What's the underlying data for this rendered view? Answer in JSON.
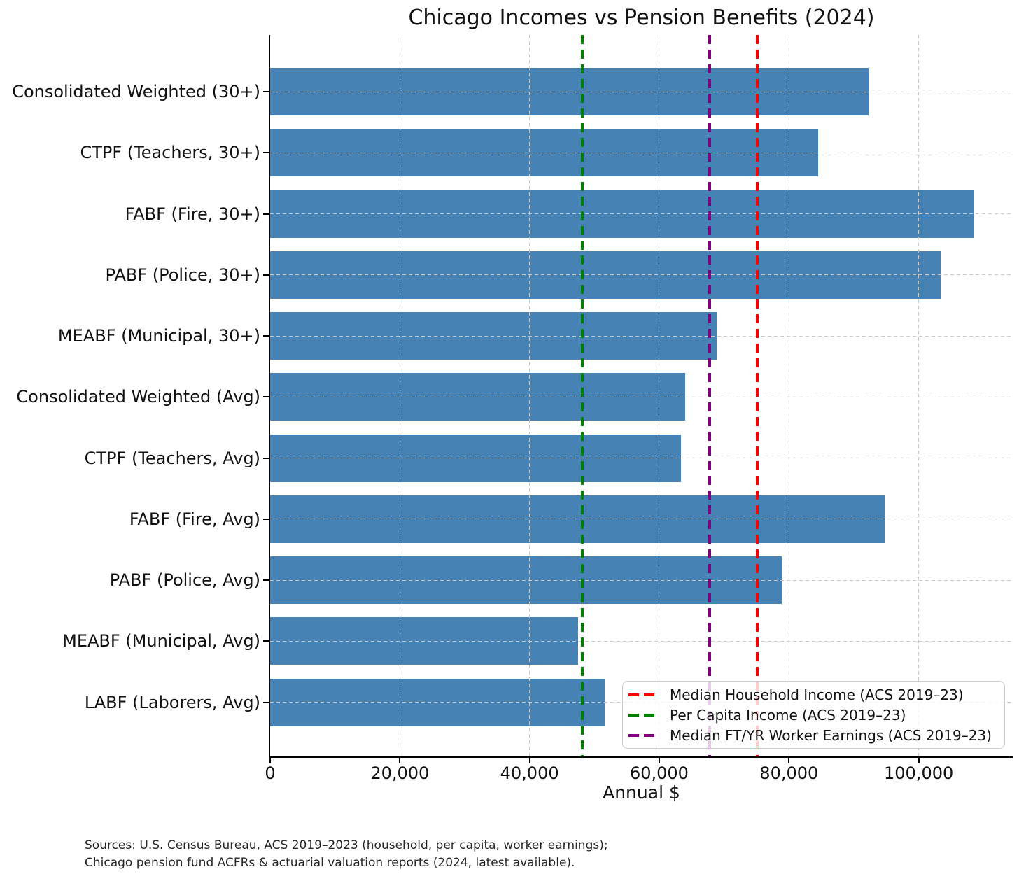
{
  "chart_data": {
    "type": "bar",
    "orientation": "horizontal",
    "title": "Chicago Incomes vs Pension Benefits (2024)",
    "xlabel": "Annual $",
    "categories": [
      "Consolidated Weighted (30+)",
      "CTPF (Teachers, 30+)",
      "FABF (Fire, 30+)",
      "PABF (Police, 30+)",
      "MEABF (Municipal, 30+)",
      "Consolidated Weighted (Avg)",
      "CTPF (Teachers, Avg)",
      "FABF (Fire, Avg)",
      "PABF (Police, Avg)",
      "MEABF (Municipal, Avg)",
      "LABF (Laborers, Avg)"
    ],
    "values": [
      92300,
      84500,
      108600,
      103400,
      68800,
      64000,
      63300,
      94700,
      78900,
      47500,
      51600
    ],
    "bar_color": "#4682b4",
    "xlim": [
      0,
      114500
    ],
    "xticks": {
      "values": [
        0,
        20000,
        40000,
        60000,
        80000,
        100000
      ],
      "labels": [
        "0",
        "20,000",
        "40,000",
        "60,000",
        "80,000",
        "100,000"
      ]
    },
    "grid": true,
    "legend_position": "lower right",
    "reference_lines": [
      {
        "label": "Median Household Income (ACS 2019–23)",
        "value": 75100,
        "color": "#ff0000",
        "style": "dashed"
      },
      {
        "label": "Per Capita Income (ACS 2019–23)",
        "value": 48100,
        "color": "#008000",
        "style": "dashed"
      },
      {
        "label": "Median FT/YR Worker Earnings (ACS 2019–23)",
        "value": 67800,
        "color": "#800080",
        "style": "dashed"
      }
    ],
    "source_note_lines": [
      "Sources: U.S. Census Bureau, ACS 2019–2023 (household, per capita, worker earnings);",
      "Chicago pension fund ACFRs & actuarial valuation reports (2024, latest available)."
    ]
  }
}
